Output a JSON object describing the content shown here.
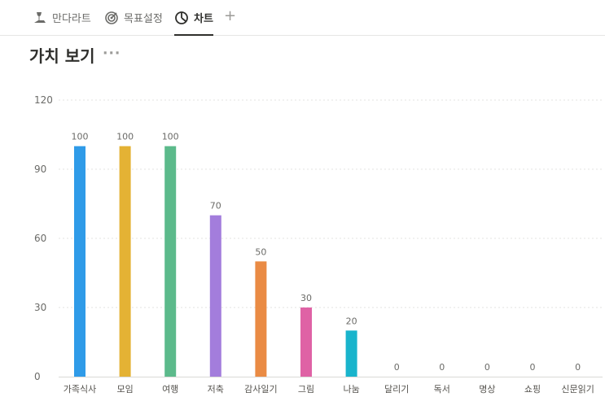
{
  "tabs": [
    {
      "label": "만다라트",
      "icon": "pin-icon",
      "active": false
    },
    {
      "label": "목표설정",
      "icon": "target-icon",
      "active": false
    },
    {
      "label": "차트",
      "icon": "pie-chart-icon",
      "active": true
    }
  ],
  "add_tab_label": "+",
  "page": {
    "title": "가치 보기",
    "more": "···"
  },
  "chart_data": {
    "type": "bar",
    "categories": [
      "가족식사",
      "모임",
      "여행",
      "저축",
      "감사일기",
      "그림",
      "나눔",
      "달리기",
      "독서",
      "명상",
      "쇼핑",
      "신문읽기"
    ],
    "values": [
      100,
      100,
      100,
      70,
      50,
      30,
      20,
      0,
      0,
      0,
      0,
      0
    ],
    "colors": [
      "#2f9be8",
      "#e4b234",
      "#5cba8b",
      "#a37ddc",
      "#ea8b44",
      "#df62a5",
      "#19b4cc",
      "#9b9a97",
      "#9b9a97",
      "#9b9a97",
      "#9b9a97",
      "#9b9a97"
    ],
    "yticks": [
      0,
      30,
      60,
      90,
      120
    ],
    "ylim": [
      0,
      120
    ],
    "grid": true,
    "legend": "none"
  }
}
